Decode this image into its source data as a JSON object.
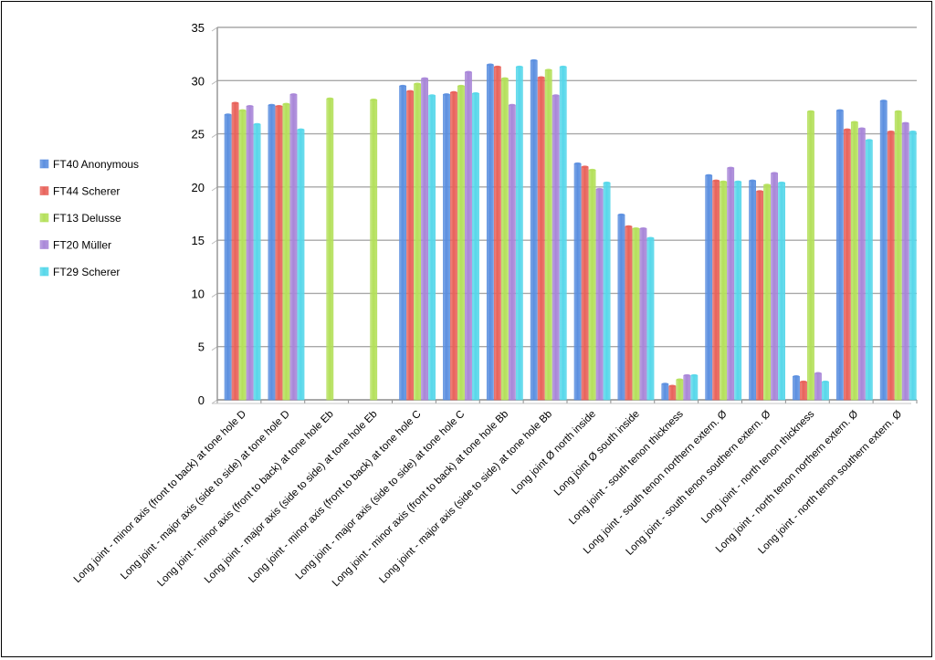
{
  "chart_data": {
    "type": "bar",
    "ylim": [
      0,
      35
    ],
    "yticks": [
      0,
      5,
      10,
      15,
      20,
      25,
      30,
      35
    ],
    "grid": true,
    "legend_position": "left",
    "categories": [
      "Long joint - minor axis (front to back) at tone hole D",
      "Long joint - major axis (side to side) at tone hole D",
      "Long joint - minor axis (front to back) at tone hole Eb",
      "Long joint - major axis (side to side) at tone hole Eb",
      "Long joint - minor axis (front to back) at tone hole C",
      "Long joint - major axis (side to side) at tone hole C",
      "Long joint - minor axis (front to back) at tone hole Bb",
      "Long joint - major axis (side to side) at tone hole Bb",
      "Long joint Ø north inside",
      "Long joint Ø  south inside",
      "Long joint - south tenon thickness",
      "Long joint - south tenon northern extern. Ø",
      "Long joint - south tenon southern extern. Ø",
      "Long joint - north tenon thickness",
      "Long joint - north tenon northern extern. Ø",
      "Long joint - north tenon southern extern. Ø"
    ],
    "series": [
      {
        "name": "FT40 Anonymous",
        "color": "#5b8fe0",
        "values": [
          26.8,
          27.7,
          0,
          0,
          29.5,
          28.7,
          31.5,
          31.9,
          22.2,
          17.4,
          1.5,
          21.1,
          20.6,
          2.2,
          27.2,
          28.1
        ]
      },
      {
        "name": "FT44 Scherer",
        "color": "#e8625a",
        "values": [
          27.9,
          27.6,
          0,
          0,
          29.0,
          28.9,
          31.3,
          30.3,
          21.9,
          16.3,
          1.3,
          20.6,
          19.6,
          1.7,
          25.4,
          25.2
        ]
      },
      {
        "name": "FT13 Delusse",
        "color": "#b4e05a",
        "values": [
          27.2,
          27.8,
          28.3,
          28.2,
          29.7,
          29.5,
          30.2,
          31.0,
          21.6,
          16.1,
          1.9,
          20.5,
          20.2,
          27.1,
          26.1,
          27.1
        ]
      },
      {
        "name": "FT20 Müller",
        "color": "#a886d8",
        "values": [
          27.6,
          28.7,
          0,
          0,
          30.2,
          30.8,
          27.7,
          28.6,
          19.8,
          16.1,
          2.3,
          21.8,
          21.3,
          2.5,
          25.5,
          26.0
        ]
      },
      {
        "name": "FT29 Scherer",
        "color": "#56d7ea",
        "values": [
          25.9,
          25.4,
          0,
          0,
          28.6,
          28.8,
          31.3,
          31.3,
          20.4,
          15.2,
          2.3,
          20.5,
          20.4,
          1.7,
          24.4,
          25.2
        ]
      }
    ]
  }
}
